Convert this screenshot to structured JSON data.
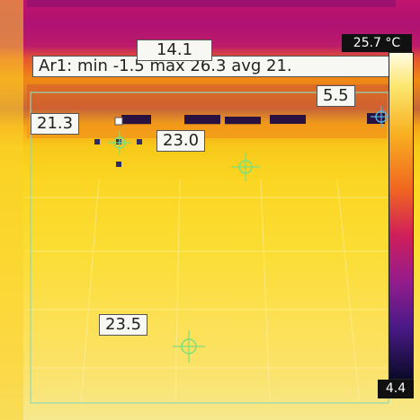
{
  "area": {
    "label": "Ar1: min -1.5 max 26.3 avg 21.",
    "max_label": "14.1"
  },
  "spots": [
    {
      "value": "21.3"
    },
    {
      "value": "23.0"
    },
    {
      "value": "5.5"
    },
    {
      "value": "23.5"
    }
  ],
  "scale": {
    "max": "25.7 °C",
    "min": "4.4"
  },
  "colors": {
    "cursor": "#7be07b",
    "selected_handle": "#2b2b66",
    "area_border": "#8fd9b8"
  }
}
